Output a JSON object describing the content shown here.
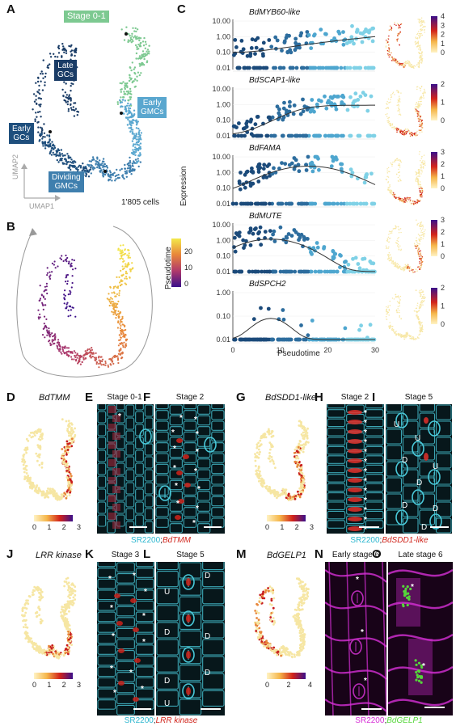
{
  "panels": {
    "A": "A",
    "B": "B",
    "C": "C",
    "D": "D",
    "E": "E",
    "F": "F",
    "G": "G",
    "H": "H",
    "I": "I",
    "J": "J",
    "K": "K",
    "L": "L",
    "M": "M",
    "N": "N",
    "O": "O"
  },
  "panelA": {
    "clusters": [
      "Stage 0-1",
      "Late GCs",
      "Early GCs",
      "Early GMCs",
      "Dividing GMCs"
    ],
    "cluster_lines": [
      [
        "Stage 0-1"
      ],
      [
        "Late",
        "GCs"
      ],
      [
        "Early",
        "GCs"
      ],
      [
        "Early",
        "GMCs"
      ],
      [
        "Dividing",
        "GMCs"
      ]
    ],
    "umap1": "UMAP1",
    "umap2": "UMAP2",
    "cell_count": "1'805 cells"
  },
  "panelB": {
    "legend_title": "Pseudotime",
    "ticks": [
      "0",
      "10",
      "20"
    ]
  },
  "panelC": {
    "y_label": "Expression",
    "x_label": "Pseudotime",
    "y_ticks": [
      "10.00",
      "1.00",
      "0.10",
      "0.01"
    ],
    "x_ticks": [
      "0",
      "10",
      "20",
      "30"
    ],
    "genes": [
      "BdMYB60-like",
      "BdSCAP1-like",
      "BdFAMA",
      "BdMUTE",
      "BdSPCH2"
    ],
    "colorbars": [
      [
        "4",
        "3",
        "2",
        "1",
        "0"
      ],
      [
        "2",
        "1",
        "0"
      ],
      [
        "3",
        "2",
        "1",
        "0"
      ],
      [
        "3",
        "2",
        "1",
        "0"
      ],
      [
        "2",
        "1",
        "0"
      ]
    ],
    "spch2_ticks": [
      "1.00",
      "0.10",
      "0.01"
    ]
  },
  "panelD": {
    "gene": "BdTMM",
    "ticks": [
      "0",
      "1",
      "2",
      "3"
    ]
  },
  "panelE": {
    "stage": "Stage 0-1"
  },
  "panelF": {
    "stage": "Stage 2"
  },
  "captionEF": {
    "marker": "SR2200",
    "sep": ";",
    "gene": "BdTMM"
  },
  "panelG": {
    "gene": "BdSDD1-like",
    "ticks": [
      "0",
      "1",
      "2",
      "3"
    ]
  },
  "panelH": {
    "stage": "Stage 2"
  },
  "panelI": {
    "stage": "Stage 5"
  },
  "captionHI": {
    "marker": "SR2200",
    "sep": ";",
    "gene": "BdSDD1-like"
  },
  "panelJ": {
    "gene": "LRR kinase",
    "ticks": [
      "0",
      "1",
      "2",
      "3"
    ]
  },
  "panelK": {
    "stage": "Stage 3"
  },
  "panelL": {
    "stage": "Stage 5"
  },
  "captionKL": {
    "marker": "SR2200",
    "sep": ";",
    "gene": "LRR kinase"
  },
  "panelM": {
    "gene": "BdGELP1",
    "ticks": [
      "0",
      "2",
      "4"
    ]
  },
  "panelN": {
    "stage": "Early stage 6"
  },
  "panelO": {
    "stage": "Late stage 6"
  },
  "captionNO": {
    "marker": "SR2200",
    "sep": ";",
    "gene": "BdGELP1"
  },
  "colors": {
    "stage01": "#7dc991",
    "lateGC": "#1a3c66",
    "earlyGC": "#1f4f7d",
    "earlyGMC": "#5aa7cf",
    "dividingGMC": "#3f7fae",
    "cyan": "#49c8d8",
    "red": "#d0231a",
    "magenta": "#d62fd6",
    "green": "#55d63a"
  }
}
